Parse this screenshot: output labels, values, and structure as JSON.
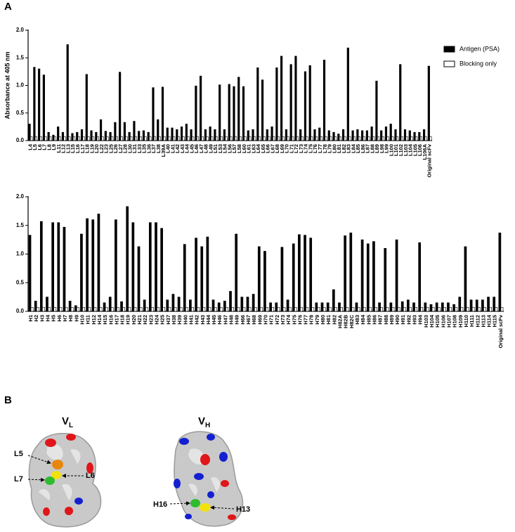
{
  "panel_a": {
    "label": "A"
  },
  "chart_data": [
    {
      "type": "bar",
      "ylabel": "Absorbance at 405 nm",
      "legend": "right",
      "categories": [
        "L4",
        "L5",
        "L6",
        "L7",
        "L8",
        "L9",
        "L11",
        "L12",
        "L13",
        "L15",
        "L16",
        "L17",
        "L18",
        "L19",
        "L20",
        "L22",
        "L23",
        "L25",
        "L26",
        "L27",
        "L28",
        "L30",
        "L31",
        "L33",
        "L35",
        "L36",
        "L37",
        "L38",
        "L39A",
        "L40",
        "L41",
        "L42",
        "L43",
        "L44",
        "L45",
        "L46",
        "L47",
        "L48",
        "L49",
        "L51",
        "L53",
        "L54",
        "L56",
        "L57",
        "L58",
        "L60",
        "L61",
        "L63",
        "L64",
        "L65",
        "L66",
        "L67",
        "L68",
        "L69",
        "L70",
        "L71",
        "L72",
        "L73",
        "L74",
        "L75",
        "L76",
        "L77",
        "L78",
        "L79",
        "L80",
        "L81",
        "L82",
        "L83",
        "L84",
        "L85",
        "L86",
        "L87",
        "L88",
        "L89",
        "L98",
        "L99",
        "L100",
        "L101",
        "L102",
        "L103",
        "L104",
        "L105",
        "L106",
        "L106A",
        "Original scFv"
      ],
      "series": [
        {
          "name": "Antigen (PSA)",
          "color": "#000000",
          "values": [
            0.3,
            1.33,
            1.3,
            1.19,
            0.15,
            0.1,
            0.25,
            0.15,
            1.74,
            0.13,
            0.15,
            0.2,
            1.2,
            0.18,
            0.15,
            0.38,
            0.17,
            0.15,
            0.33,
            1.24,
            0.33,
            0.15,
            0.35,
            0.17,
            0.18,
            0.15,
            0.96,
            0.38,
            0.97,
            0.23,
            0.23,
            0.2,
            0.25,
            0.3,
            0.2,
            0.99,
            1.17,
            0.2,
            0.25,
            0.2,
            1.01,
            0.2,
            1.02,
            0.98,
            1.15,
            0.98,
            0.18,
            0.2,
            1.32,
            1.1,
            0.2,
            0.25,
            1.32,
            1.53,
            0.2,
            1.38,
            1.53,
            0.2,
            1.25,
            1.36,
            0.2,
            0.23,
            1.46,
            0.18,
            0.15,
            0.12,
            0.2,
            1.68,
            0.18,
            0.2,
            0.18,
            0.18,
            0.25,
            1.08,
            0.18,
            0.25,
            0.3,
            0.2,
            1.38,
            0.2,
            0.18,
            0.15,
            0.15,
            0.2,
            1.35
          ]
        },
        {
          "name": "Blocking only",
          "color": "#ffffff",
          "values": [
            0.07,
            0.07,
            0.07,
            0.07,
            0.07,
            0.07,
            0.07,
            0.07,
            0.07,
            0.07,
            0.07,
            0.07,
            0.07,
            0.07,
            0.07,
            0.07,
            0.07,
            0.07,
            0.07,
            0.07,
            0.07,
            0.07,
            0.07,
            0.07,
            0.07,
            0.07,
            0.07,
            0.07,
            0.07,
            0.07,
            0.07,
            0.07,
            0.07,
            0.07,
            0.07,
            0.07,
            0.07,
            0.07,
            0.07,
            0.07,
            0.07,
            0.07,
            0.07,
            0.07,
            0.07,
            0.07,
            0.07,
            0.07,
            0.07,
            0.07,
            0.07,
            0.07,
            0.07,
            0.07,
            0.07,
            0.07,
            0.07,
            0.07,
            0.07,
            0.07,
            0.07,
            0.07,
            0.07,
            0.07,
            0.07,
            0.07,
            0.07,
            0.07,
            0.07,
            0.07,
            0.07,
            0.07,
            0.07,
            0.07,
            0.07,
            0.07,
            0.07,
            0.07,
            0.07,
            0.07,
            0.07,
            0.07,
            0.07,
            0.07,
            0.07
          ]
        }
      ],
      "ylim": [
        0,
        2
      ],
      "yticks": [
        {
          "value": 0,
          "label": "0.0"
        },
        0.5,
        {
          "value": 1,
          "label": "1.0"
        },
        1.5,
        {
          "value": 2,
          "label": "2.0"
        }
      ]
    },
    {
      "type": "bar",
      "categories": [
        "H1",
        "H2",
        "H3",
        "H4",
        "H5",
        "H6",
        "H7",
        "H8",
        "H9",
        "H10",
        "H11",
        "H12",
        "H14",
        "H15",
        "H16",
        "H17",
        "H18",
        "H19",
        "H20",
        "H21",
        "H22",
        "H23",
        "H24",
        "H25",
        "H37",
        "H38",
        "H39",
        "H40",
        "H41",
        "H42",
        "H43",
        "H44",
        "H45",
        "H46",
        "H47",
        "H48",
        "H49",
        "H66",
        "H67",
        "H68",
        "H69",
        "H70",
        "H71",
        "H72",
        "H73",
        "H74",
        "H75",
        "H76",
        "H77",
        "H78",
        "H79",
        "H80",
        "H81",
        "H82",
        "H82A",
        "H82B",
        "H82C",
        "H83",
        "H84",
        "H85",
        "H86",
        "H87",
        "H88",
        "H89",
        "H90",
        "H91",
        "H92",
        "H93",
        "H94",
        "H103",
        "H104",
        "H105",
        "H106",
        "H107",
        "H108",
        "H109",
        "H110",
        "H111",
        "H112",
        "H113",
        "H114",
        "H115",
        "Original scFv"
      ],
      "series": [
        {
          "color": "#000000",
          "values": [
            1.33,
            0.18,
            1.57,
            0.25,
            1.55,
            1.55,
            1.47,
            0.18,
            0.1,
            1.35,
            1.62,
            1.6,
            1.7,
            0.15,
            0.25,
            1.6,
            0.17,
            1.83,
            1.55,
            1.13,
            0.2,
            1.55,
            1.55,
            1.45,
            0.2,
            0.3,
            0.25,
            1.17,
            0.2,
            1.28,
            1.13,
            1.3,
            0.2,
            0.15,
            0.18,
            0.35,
            1.35,
            0.25,
            0.25,
            0.3,
            1.13,
            1.05,
            0.15,
            0.15,
            1.12,
            0.2,
            1.18,
            1.34,
            1.33,
            1.28,
            0.15,
            0.15,
            0.15,
            0.38,
            0.15,
            1.32,
            1.37,
            0.15,
            1.25,
            1.18,
            1.22,
            0.15,
            1.1,
            0.15,
            1.25,
            0.17,
            0.2,
            0.15,
            1.2,
            0.15,
            0.12,
            0.15,
            0.15,
            0.15,
            0.12,
            0.25,
            1.13,
            0.2,
            0.2,
            0.2,
            0.25,
            0.25,
            1.37
          ]
        },
        {
          "color": "#ffffff",
          "values": [
            0.07,
            0.07,
            0.07,
            0.07,
            0.07,
            0.07,
            0.07,
            0.07,
            0.07,
            0.07,
            0.07,
            0.07,
            0.07,
            0.07,
            0.07,
            0.07,
            0.07,
            0.07,
            0.07,
            0.07,
            0.07,
            0.07,
            0.07,
            0.07,
            0.07,
            0.07,
            0.07,
            0.07,
            0.07,
            0.07,
            0.07,
            0.07,
            0.07,
            0.07,
            0.07,
            0.07,
            0.07,
            0.07,
            0.07,
            0.07,
            0.07,
            0.07,
            0.07,
            0.07,
            0.07,
            0.07,
            0.07,
            0.07,
            0.07,
            0.07,
            0.07,
            0.07,
            0.07,
            0.07,
            0.07,
            0.07,
            0.07,
            0.07,
            0.07,
            0.07,
            0.07,
            0.07,
            0.07,
            0.07,
            0.07,
            0.07,
            0.07,
            0.07,
            0.07,
            0.07,
            0.07,
            0.07,
            0.07,
            0.07,
            0.07,
            0.07,
            0.07,
            0.07,
            0.07,
            0.07,
            0.07,
            0.07,
            0.07
          ]
        }
      ],
      "ylim": [
        0,
        2
      ],
      "yticks": [
        {
          "value": 0,
          "label": "0.0"
        },
        0.5,
        {
          "value": 1,
          "label": "1.0"
        },
        1.5,
        {
          "value": 2,
          "label": "2.0"
        }
      ]
    }
  ],
  "panel_b": {
    "label": "B",
    "structures": [
      {
        "domain": "V",
        "subscript": "L",
        "labels": [
          "L5",
          "L7",
          "L6"
        ]
      },
      {
        "domain": "V",
        "subscript": "H",
        "labels": [
          "H16",
          "H13"
        ]
      }
    ]
  }
}
